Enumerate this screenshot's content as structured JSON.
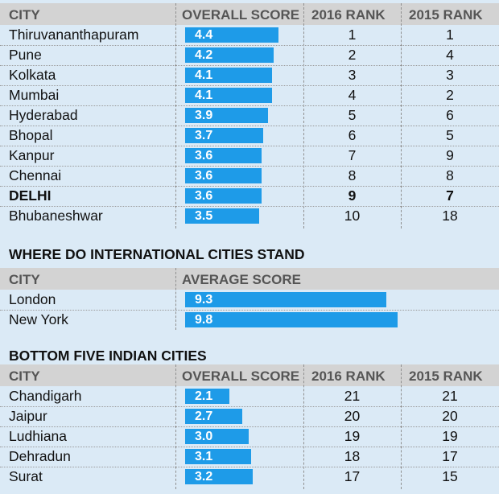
{
  "headers": {
    "city": "CITY",
    "overall_score": "OVERALL SCORE",
    "rank2016": "2016 RANK",
    "rank2015": "2015 RANK",
    "average_score": "AVERAGE SCORE"
  },
  "section2_title": "WHERE DO INTERNATIONAL CITIES STAND",
  "section3_title": "BOTTOM FIVE INDIAN CITIES",
  "colors": {
    "bar": "#1e9be8",
    "background": "#dbeaf6",
    "header": "#d3d3d3"
  },
  "chart_data": [
    {
      "type": "bar",
      "categories": [
        "Thiruvananthapuram",
        "Pune",
        "Kolkata",
        "Mumbai",
        "Hyderabad",
        "Bhopal",
        "Kanpur",
        "Chennai",
        "DELHI",
        "Bhubaneshwar"
      ],
      "values": [
        4.4,
        4.2,
        4.1,
        4.1,
        3.9,
        3.7,
        3.6,
        3.6,
        3.6,
        3.5
      ],
      "rank2016": [
        "1",
        "2",
        "3",
        "4",
        "5",
        "6",
        "7",
        "8",
        "9",
        "10"
      ],
      "rank2015": [
        "1",
        "4",
        "3",
        "2",
        "6",
        "5",
        "9",
        "8",
        "7",
        "18"
      ],
      "highlight": "DELHI"
    },
    {
      "type": "bar",
      "categories": [
        "London",
        "New York"
      ],
      "values": [
        9.3,
        9.8
      ]
    },
    {
      "type": "bar",
      "categories": [
        "Chandigarh",
        "Jaipur",
        "Ludhiana",
        "Dehradun",
        "Surat"
      ],
      "values": [
        2.1,
        2.7,
        3.0,
        3.1,
        3.2
      ],
      "rank2016": [
        "21",
        "20",
        "19",
        "18",
        "17"
      ],
      "rank2015": [
        "21",
        "20",
        "19",
        "17",
        "15"
      ]
    }
  ]
}
